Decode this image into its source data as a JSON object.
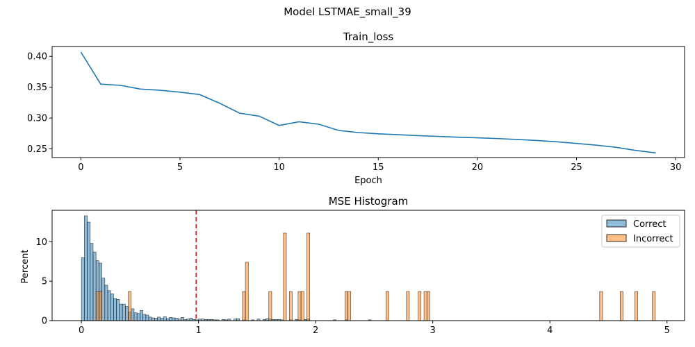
{
  "figure": {
    "suptitle": "Model LSTMAE_small_39"
  },
  "chart_data": [
    {
      "type": "line",
      "title": "Train_loss",
      "xlabel": "Epoch",
      "ylabel": "",
      "xlim": [
        -1.45,
        30.45
      ],
      "ylim": [
        0.236,
        0.416
      ],
      "xticks": [
        0,
        5,
        10,
        15,
        20,
        25,
        30
      ],
      "yticks": [
        0.25,
        0.3,
        0.35,
        0.4
      ],
      "series": [
        {
          "color": "#1f77b4",
          "x": [
            0,
            1,
            2,
            3,
            4,
            5,
            6,
            7,
            8,
            9,
            10,
            11,
            12,
            13,
            14,
            15,
            16,
            17,
            18,
            19,
            20,
            21,
            22,
            23,
            24,
            25,
            26,
            27,
            28,
            29
          ],
          "y": [
            0.407,
            0.355,
            0.353,
            0.347,
            0.345,
            0.342,
            0.338,
            0.324,
            0.308,
            0.303,
            0.288,
            0.294,
            0.29,
            0.28,
            0.2765,
            0.2745,
            0.273,
            0.2715,
            0.2703,
            0.269,
            0.268,
            0.2668,
            0.2653,
            0.2636,
            0.2615,
            0.2588,
            0.256,
            0.2525,
            0.2475,
            0.2435
          ]
        }
      ]
    },
    {
      "type": "histogram",
      "title": "MSE Histogram",
      "xlabel": "",
      "ylabel": "Percent",
      "xlim": [
        -0.25,
        5.15
      ],
      "ylim": [
        0,
        14.0
      ],
      "xticks": [
        0,
        1,
        2,
        3,
        4,
        5
      ],
      "yticks": [
        0,
        5,
        10
      ],
      "bin_width": 0.025,
      "threshold": 0.98,
      "threshold_color": "#d62728",
      "legend": {
        "position": "top-right",
        "entries": [
          "Correct",
          "Incorrect"
        ]
      },
      "series": [
        {
          "name": "Correct",
          "color": "#1f77b4",
          "bins": [
            [
              0.0,
              8.0
            ],
            [
              0.025,
              13.3
            ],
            [
              0.05,
              12.5
            ],
            [
              0.075,
              9.8
            ],
            [
              0.1,
              8.7
            ],
            [
              0.125,
              7.6
            ],
            [
              0.15,
              7.3
            ],
            [
              0.175,
              5.4
            ],
            [
              0.2,
              4.5
            ],
            [
              0.225,
              3.8
            ],
            [
              0.25,
              3.4
            ],
            [
              0.275,
              2.8
            ],
            [
              0.3,
              2.7
            ],
            [
              0.325,
              2.1
            ],
            [
              0.35,
              2.1
            ],
            [
              0.375,
              1.8
            ],
            [
              0.4,
              1.1
            ],
            [
              0.425,
              1.5
            ],
            [
              0.45,
              1.0
            ],
            [
              0.475,
              0.9
            ],
            [
              0.5,
              1.3
            ],
            [
              0.525,
              0.8
            ],
            [
              0.55,
              0.7
            ],
            [
              0.575,
              0.45
            ],
            [
              0.6,
              0.35
            ],
            [
              0.625,
              0.3
            ],
            [
              0.65,
              0.45
            ],
            [
              0.675,
              0.3
            ],
            [
              0.7,
              0.5
            ],
            [
              0.725,
              0.25
            ],
            [
              0.75,
              0.4
            ],
            [
              0.775,
              0.35
            ],
            [
              0.8,
              0.3
            ],
            [
              0.825,
              0.2
            ],
            [
              0.85,
              0.4
            ],
            [
              0.875,
              0.15
            ],
            [
              0.9,
              0.2
            ],
            [
              0.925,
              0.3
            ],
            [
              0.95,
              0.15
            ],
            [
              0.975,
              0.1
            ],
            [
              1.0,
              0.2
            ],
            [
              1.025,
              0.2
            ],
            [
              1.05,
              0.15
            ],
            [
              1.075,
              0.15
            ],
            [
              1.1,
              0.15
            ],
            [
              1.125,
              0.1
            ],
            [
              1.15,
              0.1
            ],
            [
              1.2,
              0.15
            ],
            [
              1.225,
              0.1
            ],
            [
              1.25,
              0.2
            ],
            [
              1.3,
              0.2
            ],
            [
              1.325,
              0.25
            ],
            [
              1.375,
              0.1
            ],
            [
              1.45,
              0.1
            ],
            [
              1.5,
              0.2
            ],
            [
              1.55,
              0.15
            ],
            [
              1.575,
              0.25
            ],
            [
              1.6,
              0.2
            ],
            [
              1.625,
              0.15
            ],
            [
              1.65,
              0.15
            ],
            [
              1.675,
              0.15
            ],
            [
              1.7,
              0.1
            ],
            [
              1.775,
              0.1
            ],
            [
              1.825,
              0.15
            ],
            [
              1.85,
              0.1
            ],
            [
              1.9,
              0.15
            ],
            [
              1.925,
              0.2
            ],
            [
              2.15,
              0.1
            ],
            [
              2.25,
              0.1
            ],
            [
              2.45,
              0.1
            ]
          ]
        },
        {
          "name": "Incorrect",
          "color": "#ff7f0e",
          "bins": [
            [
              0.125,
              3.7
            ],
            [
              0.15,
              3.7
            ],
            [
              0.4,
              3.7
            ],
            [
              1.375,
              3.7
            ],
            [
              1.4,
              7.4
            ],
            [
              1.6,
              3.7
            ],
            [
              1.725,
              11.1
            ],
            [
              1.775,
              3.7
            ],
            [
              1.85,
              3.7
            ],
            [
              1.875,
              3.7
            ],
            [
              1.925,
              11.1
            ],
            [
              2.25,
              3.7
            ],
            [
              2.275,
              3.7
            ],
            [
              2.6,
              3.7
            ],
            [
              2.775,
              3.7
            ],
            [
              2.875,
              3.7
            ],
            [
              2.925,
              3.7
            ],
            [
              2.95,
              3.7
            ],
            [
              4.425,
              3.7
            ],
            [
              4.6,
              3.7
            ],
            [
              4.725,
              3.7
            ],
            [
              4.875,
              3.7
            ]
          ]
        }
      ]
    }
  ]
}
